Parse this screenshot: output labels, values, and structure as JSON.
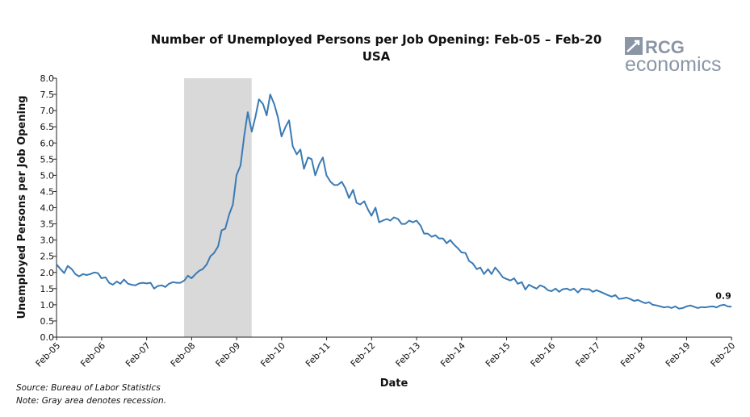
{
  "chart_data": {
    "type": "line",
    "title": "Number of Unemployed Persons per Job Opening: Feb-05 – Feb-20",
    "subtitle": "USA",
    "xlabel": "Date",
    "ylabel": "Unemployed Persons per Job Opening",
    "ylim": [
      0,
      8
    ],
    "yticks": [
      "0.0",
      "0.5",
      "1.0",
      "1.5",
      "2.0",
      "2.5",
      "3.0",
      "3.5",
      "4.0",
      "4.5",
      "5.0",
      "5.5",
      "6.0",
      "6.5",
      "7.0",
      "7.5",
      "8.0"
    ],
    "xticks": [
      "Feb-05",
      "Feb-06",
      "Feb-07",
      "Feb-08",
      "Feb-09",
      "Feb-10",
      "Feb-11",
      "Feb-12",
      "Feb-13",
      "Feb-14",
      "Feb-15",
      "Feb-16",
      "Feb-17",
      "Feb-18",
      "Feb-19",
      "Feb-20"
    ],
    "grid": false,
    "line_color": "#3a7ab5",
    "recession_color": "#d9d9d9",
    "recession": {
      "start": "Dec-07",
      "end": "Jun-09"
    },
    "end_label": "0.9",
    "series": [
      {
        "values": [
          [
            2005.08,
            2.25
          ],
          [
            2005.17,
            2.1
          ],
          [
            2005.25,
            1.98
          ],
          [
            2005.33,
            2.2
          ],
          [
            2005.42,
            2.1
          ],
          [
            2005.5,
            1.95
          ],
          [
            2005.58,
            1.88
          ],
          [
            2005.67,
            1.95
          ],
          [
            2005.75,
            1.92
          ],
          [
            2005.83,
            1.95
          ],
          [
            2005.92,
            2.0
          ],
          [
            2006.0,
            1.98
          ],
          [
            2006.08,
            1.82
          ],
          [
            2006.17,
            1.85
          ],
          [
            2006.25,
            1.68
          ],
          [
            2006.33,
            1.62
          ],
          [
            2006.42,
            1.72
          ],
          [
            2006.5,
            1.65
          ],
          [
            2006.58,
            1.78
          ],
          [
            2006.67,
            1.65
          ],
          [
            2006.75,
            1.62
          ],
          [
            2006.83,
            1.6
          ],
          [
            2006.92,
            1.66
          ],
          [
            2007.0,
            1.68
          ],
          [
            2007.08,
            1.66
          ],
          [
            2007.17,
            1.68
          ],
          [
            2007.25,
            1.5
          ],
          [
            2007.33,
            1.58
          ],
          [
            2007.42,
            1.6
          ],
          [
            2007.5,
            1.55
          ],
          [
            2007.58,
            1.65
          ],
          [
            2007.67,
            1.7
          ],
          [
            2007.75,
            1.68
          ],
          [
            2007.83,
            1.68
          ],
          [
            2007.92,
            1.75
          ],
          [
            2008.0,
            1.9
          ],
          [
            2008.08,
            1.82
          ],
          [
            2008.17,
            1.95
          ],
          [
            2008.25,
            2.05
          ],
          [
            2008.33,
            2.1
          ],
          [
            2008.42,
            2.25
          ],
          [
            2008.5,
            2.5
          ],
          [
            2008.58,
            2.6
          ],
          [
            2008.67,
            2.8
          ],
          [
            2008.75,
            3.3
          ],
          [
            2008.83,
            3.35
          ],
          [
            2008.92,
            3.8
          ],
          [
            2009.0,
            4.1
          ],
          [
            2009.08,
            5.0
          ],
          [
            2009.17,
            5.3
          ],
          [
            2009.25,
            6.2
          ],
          [
            2009.33,
            6.95
          ],
          [
            2009.42,
            6.35
          ],
          [
            2009.5,
            6.8
          ],
          [
            2009.58,
            7.35
          ],
          [
            2009.67,
            7.2
          ],
          [
            2009.75,
            6.85
          ],
          [
            2009.83,
            7.5
          ],
          [
            2009.92,
            7.2
          ],
          [
            2010.0,
            6.8
          ],
          [
            2010.08,
            6.2
          ],
          [
            2010.17,
            6.5
          ],
          [
            2010.25,
            6.7
          ],
          [
            2010.33,
            5.9
          ],
          [
            2010.42,
            5.65
          ],
          [
            2010.5,
            5.8
          ],
          [
            2010.58,
            5.2
          ],
          [
            2010.67,
            5.55
          ],
          [
            2010.75,
            5.5
          ],
          [
            2010.83,
            5.0
          ],
          [
            2010.92,
            5.35
          ],
          [
            2011.0,
            5.55
          ],
          [
            2011.08,
            5.0
          ],
          [
            2011.17,
            4.8
          ],
          [
            2011.25,
            4.7
          ],
          [
            2011.33,
            4.7
          ],
          [
            2011.42,
            4.8
          ],
          [
            2011.5,
            4.6
          ],
          [
            2011.58,
            4.3
          ],
          [
            2011.67,
            4.55
          ],
          [
            2011.75,
            4.15
          ],
          [
            2011.83,
            4.1
          ],
          [
            2011.92,
            4.2
          ],
          [
            2012.0,
            3.95
          ],
          [
            2012.08,
            3.75
          ],
          [
            2012.17,
            4.0
          ],
          [
            2012.25,
            3.55
          ],
          [
            2012.33,
            3.6
          ],
          [
            2012.42,
            3.65
          ],
          [
            2012.5,
            3.6
          ],
          [
            2012.58,
            3.7
          ],
          [
            2012.67,
            3.65
          ],
          [
            2012.75,
            3.5
          ],
          [
            2012.83,
            3.5
          ],
          [
            2012.92,
            3.6
          ],
          [
            2013.0,
            3.55
          ],
          [
            2013.08,
            3.6
          ],
          [
            2013.17,
            3.45
          ],
          [
            2013.25,
            3.2
          ],
          [
            2013.33,
            3.2
          ],
          [
            2013.42,
            3.1
          ],
          [
            2013.5,
            3.15
          ],
          [
            2013.58,
            3.05
          ],
          [
            2013.67,
            3.05
          ],
          [
            2013.75,
            2.9
          ],
          [
            2013.83,
            3.0
          ],
          [
            2013.92,
            2.85
          ],
          [
            2014.0,
            2.75
          ],
          [
            2014.08,
            2.62
          ],
          [
            2014.17,
            2.6
          ],
          [
            2014.25,
            2.35
          ],
          [
            2014.33,
            2.28
          ],
          [
            2014.42,
            2.1
          ],
          [
            2014.5,
            2.15
          ],
          [
            2014.58,
            1.95
          ],
          [
            2014.67,
            2.1
          ],
          [
            2014.75,
            1.95
          ],
          [
            2014.83,
            2.15
          ],
          [
            2014.92,
            2.0
          ],
          [
            2015.0,
            1.85
          ],
          [
            2015.08,
            1.8
          ],
          [
            2015.17,
            1.75
          ],
          [
            2015.25,
            1.82
          ],
          [
            2015.33,
            1.65
          ],
          [
            2015.42,
            1.7
          ],
          [
            2015.5,
            1.47
          ],
          [
            2015.58,
            1.62
          ],
          [
            2015.67,
            1.55
          ],
          [
            2015.75,
            1.5
          ],
          [
            2015.83,
            1.6
          ],
          [
            2015.92,
            1.55
          ],
          [
            2016.0,
            1.45
          ],
          [
            2016.08,
            1.42
          ],
          [
            2016.17,
            1.5
          ],
          [
            2016.25,
            1.4
          ],
          [
            2016.33,
            1.48
          ],
          [
            2016.42,
            1.5
          ],
          [
            2016.5,
            1.45
          ],
          [
            2016.58,
            1.5
          ],
          [
            2016.67,
            1.38
          ],
          [
            2016.75,
            1.5
          ],
          [
            2016.83,
            1.48
          ],
          [
            2016.92,
            1.48
          ],
          [
            2017.0,
            1.4
          ],
          [
            2017.08,
            1.45
          ],
          [
            2017.17,
            1.4
          ],
          [
            2017.25,
            1.35
          ],
          [
            2017.33,
            1.3
          ],
          [
            2017.42,
            1.25
          ],
          [
            2017.5,
            1.3
          ],
          [
            2017.58,
            1.18
          ],
          [
            2017.67,
            1.2
          ],
          [
            2017.75,
            1.22
          ],
          [
            2017.83,
            1.18
          ],
          [
            2017.92,
            1.12
          ],
          [
            2018.0,
            1.15
          ],
          [
            2018.08,
            1.1
          ],
          [
            2018.17,
            1.05
          ],
          [
            2018.25,
            1.08
          ],
          [
            2018.33,
            1.0
          ],
          [
            2018.42,
            0.98
          ],
          [
            2018.5,
            0.95
          ],
          [
            2018.58,
            0.92
          ],
          [
            2018.67,
            0.94
          ],
          [
            2018.75,
            0.9
          ],
          [
            2018.83,
            0.95
          ],
          [
            2018.92,
            0.88
          ],
          [
            2019.0,
            0.9
          ],
          [
            2019.08,
            0.95
          ],
          [
            2019.17,
            0.98
          ],
          [
            2019.25,
            0.94
          ],
          [
            2019.33,
            0.9
          ],
          [
            2019.42,
            0.93
          ],
          [
            2019.5,
            0.92
          ],
          [
            2019.58,
            0.94
          ],
          [
            2019.67,
            0.95
          ],
          [
            2019.75,
            0.92
          ],
          [
            2019.83,
            0.98
          ],
          [
            2019.92,
            1.0
          ],
          [
            2020.0,
            0.95
          ],
          [
            2020.08,
            0.94
          ]
        ]
      }
    ]
  },
  "notes": {
    "source": "Source: Bureau of Labor Statistics",
    "note": "Note: Gray area denotes recession."
  },
  "logo": {
    "top_text": "RCG",
    "bottom_text": "economics"
  }
}
